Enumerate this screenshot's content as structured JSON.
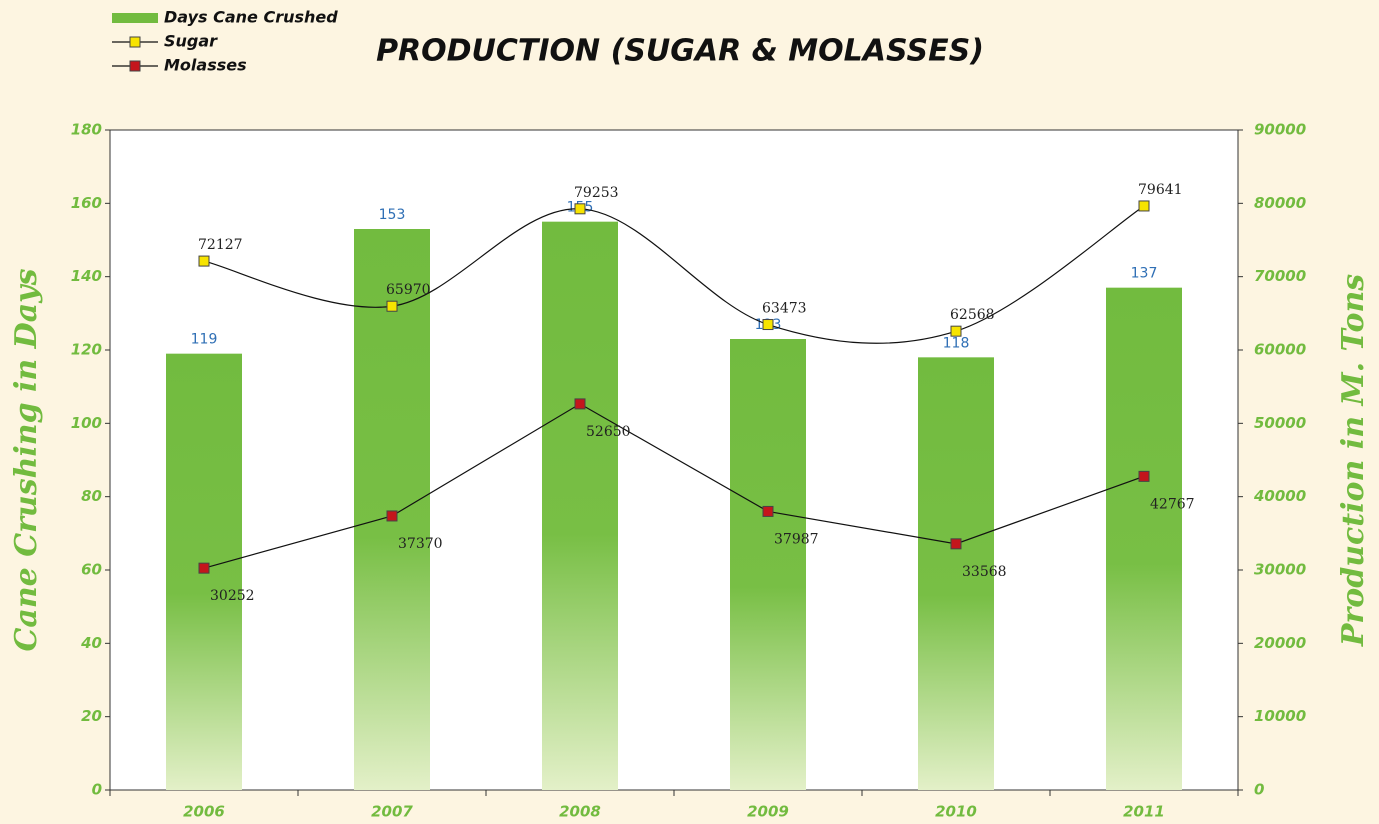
{
  "chart_data": {
    "type": "bar-line",
    "title": "PRODUCTION (SUGAR & MOLASSES)",
    "y_label": "Cane Crushing in Days",
    "y2_label": "Production in M. Tons",
    "categories": [
      "2006",
      "2007",
      "2008",
      "2009",
      "2010",
      "2011"
    ],
    "series": [
      {
        "name": "Days Cane Crushed",
        "type": "bar",
        "color": "#72bb3f",
        "values": [
          119,
          153,
          155,
          123,
          118,
          137
        ]
      },
      {
        "name": "Sugar",
        "type": "line",
        "smooth": true,
        "axis": "y2",
        "color": "#f7e400",
        "values": [
          72127,
          65970,
          79253,
          63473,
          62568,
          79641
        ]
      },
      {
        "name": "Molasses",
        "type": "line",
        "smooth": false,
        "axis": "y2",
        "color": "#c4161c",
        "values": [
          30252,
          37370,
          52650,
          37987,
          33568,
          42767
        ]
      }
    ],
    "ylim": [
      0,
      180
    ],
    "yticks": [
      0,
      20,
      40,
      60,
      80,
      100,
      120,
      140,
      160,
      180
    ],
    "y2lim": [
      0,
      90000
    ],
    "y2ticks": [
      0,
      10000,
      20000,
      30000,
      40000,
      50000,
      60000,
      70000,
      80000,
      90000
    ],
    "legend": "top-left"
  }
}
